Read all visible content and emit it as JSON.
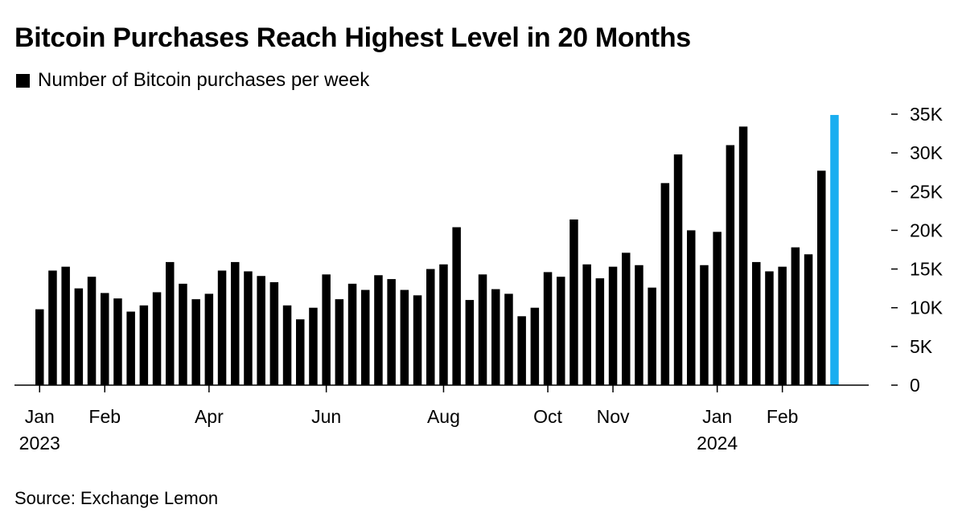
{
  "chart_data": {
    "type": "bar",
    "title": "Bitcoin Purchases Reach Highest Level in 20 Months",
    "legend": [
      {
        "label": "Number of Bitcoin purchases per week",
        "color": "#000000"
      }
    ],
    "source": "Source: Exchange Lemon",
    "ylim": [
      0,
      35000
    ],
    "y_ticks": [
      {
        "value": 0,
        "label": "0"
      },
      {
        "value": 5000,
        "label": "5K"
      },
      {
        "value": 10000,
        "label": "10K"
      },
      {
        "value": 15000,
        "label": "15K"
      },
      {
        "value": 20000,
        "label": "20K"
      },
      {
        "value": 25000,
        "label": "25K"
      },
      {
        "value": 30000,
        "label": "30K"
      },
      {
        "value": 35000,
        "label": "35K"
      }
    ],
    "x_ticks": [
      {
        "index": 0,
        "label": "Jan",
        "sublabel": "2023"
      },
      {
        "index": 5,
        "label": "Feb",
        "sublabel": ""
      },
      {
        "index": 13,
        "label": "Apr",
        "sublabel": ""
      },
      {
        "index": 22,
        "label": "Jun",
        "sublabel": ""
      },
      {
        "index": 31,
        "label": "Aug",
        "sublabel": ""
      },
      {
        "index": 39,
        "label": "Oct",
        "sublabel": ""
      },
      {
        "index": 44,
        "label": "Nov",
        "sublabel": ""
      },
      {
        "index": 52,
        "label": "Jan",
        "sublabel": "2024"
      },
      {
        "index": 57,
        "label": "Feb",
        "sublabel": ""
      }
    ],
    "highlight_color": "#1aaef0",
    "bar_color": "#000000",
    "highlight_index": 61,
    "values": [
      9800,
      14800,
      15300,
      12500,
      14000,
      11900,
      11200,
      9500,
      10300,
      12000,
      15900,
      13100,
      11100,
      11800,
      14800,
      15900,
      14700,
      14100,
      13300,
      10300,
      8500,
      10000,
      14300,
      11100,
      13100,
      12300,
      14200,
      13700,
      12300,
      11600,
      15000,
      15600,
      20400,
      11000,
      14300,
      12400,
      11800,
      8900,
      10000,
      14600,
      14000,
      21400,
      15600,
      13800,
      15300,
      17100,
      15500,
      12600,
      26100,
      29800,
      20000,
      15500,
      19800,
      31000,
      33400,
      15900,
      14700,
      15300,
      17800,
      16900,
      27700,
      34900
    ]
  }
}
